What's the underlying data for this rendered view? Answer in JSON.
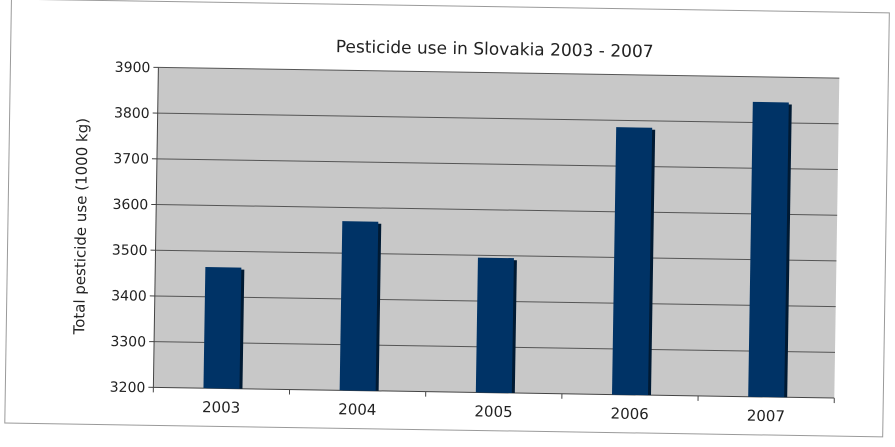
{
  "chart_data": {
    "type": "bar",
    "title": "Pesticide use in Slovakia 2003 - 2007",
    "xlabel": "",
    "ylabel": "Total pesticide use (1000 kg)",
    "categories": [
      "2003",
      "2004",
      "2005",
      "2006",
      "2007"
    ],
    "values": [
      3465,
      3570,
      3495,
      3785,
      3845
    ],
    "ylim": [
      3200,
      3900
    ],
    "yticks": [
      "3200",
      "3300",
      "3400",
      "3500",
      "3600",
      "3700",
      "3800",
      "3900"
    ],
    "grid": true,
    "legend": "none",
    "colors": {
      "bar": "#003366",
      "plot_background": "#c8c8c8",
      "gridline": "#555555",
      "frame": "#9a9a9a"
    }
  }
}
